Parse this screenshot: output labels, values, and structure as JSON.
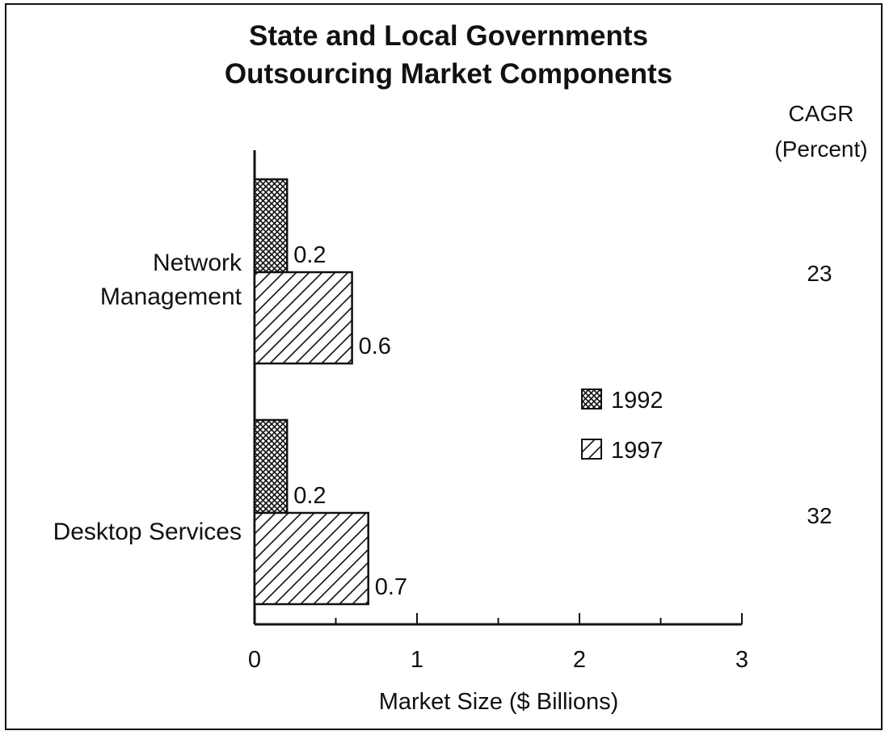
{
  "chart_data": {
    "type": "bar",
    "orientation": "horizontal",
    "title": "State and Local Governments",
    "subtitle": "Outsourcing Market Components",
    "xlabel": "Market Size ($ Billions)",
    "ylabel": "",
    "xlim": [
      0,
      3
    ],
    "xticks": [
      "0",
      "1",
      "2",
      "3"
    ],
    "categories": [
      "Network Management",
      "Desktop Services"
    ],
    "series": [
      {
        "name": "1992",
        "values": [
          0.2,
          0.2
        ],
        "value_labels": [
          "0.2",
          "0.2"
        ],
        "pattern": "crosshatch"
      },
      {
        "name": "1997",
        "values": [
          0.6,
          0.7
        ],
        "value_labels": [
          "0.6",
          "0.7"
        ],
        "pattern": "diagonal"
      }
    ],
    "cagr_header": [
      "CAGR",
      "(Percent)"
    ],
    "cagr_values": [
      "23",
      "32"
    ],
    "legend_position": "center-right",
    "grid": false
  }
}
